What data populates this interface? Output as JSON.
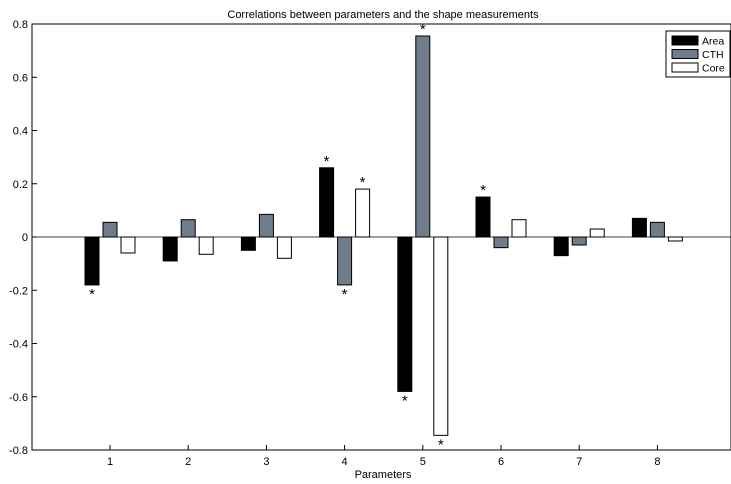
{
  "chart_data": {
    "type": "bar",
    "title": "Correlations between parameters and the shape measurements",
    "xlabel": "Parameters",
    "ylabel": "",
    "categories": [
      "1",
      "2",
      "3",
      "4",
      "5",
      "6",
      "7",
      "8"
    ],
    "ylim": [
      -0.8,
      0.8
    ],
    "yticks": [
      "-0.8",
      "-0.6",
      "-0.4",
      "-0.2",
      "0",
      "0.2",
      "0.4",
      "0.6",
      "0.8"
    ],
    "grid": false,
    "legend_position": "top-right",
    "significance_marker": "*",
    "series": [
      {
        "name": "Area",
        "color": "#000000",
        "values": [
          -0.18,
          -0.09,
          -0.05,
          0.26,
          -0.58,
          0.15,
          -0.07,
          0.07
        ],
        "significant": [
          true,
          false,
          false,
          true,
          true,
          true,
          false,
          false
        ]
      },
      {
        "name": "CTH",
        "color": "#6f7c8c",
        "values": [
          0.055,
          0.065,
          0.085,
          -0.18,
          0.755,
          -0.04,
          -0.03,
          0.055
        ],
        "significant": [
          false,
          false,
          false,
          true,
          true,
          false,
          false,
          false
        ]
      },
      {
        "name": "Core",
        "color": "#ffffff",
        "values": [
          -0.06,
          -0.065,
          -0.08,
          0.18,
          -0.745,
          0.065,
          0.03,
          -0.015
        ],
        "significant": [
          false,
          false,
          false,
          true,
          true,
          false,
          false,
          false
        ]
      }
    ]
  }
}
